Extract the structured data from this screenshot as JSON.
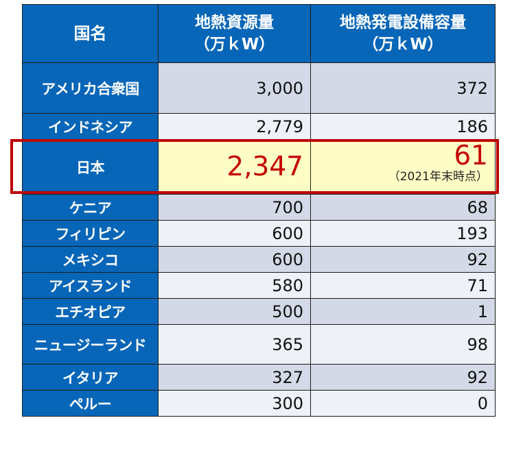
{
  "header": {
    "country": "国名",
    "resource_line1": "地熱資源量",
    "resource_line2": "（万ｋW）",
    "capacity_line1": "地熱発電設備容量",
    "capacity_line2": "（万ｋW）"
  },
  "rows": [
    {
      "country": "アメリカ合衆国",
      "resource": "3,000",
      "capacity": "372"
    },
    {
      "country": "インドネシア",
      "resource": "2,779",
      "capacity": "186"
    },
    {
      "country": "日本",
      "resource": "2,347",
      "capacity": "61",
      "note": "（2021年末時点）"
    },
    {
      "country": "ケニア",
      "resource": "700",
      "capacity": "68"
    },
    {
      "country": "フィリピン",
      "resource": "600",
      "capacity": "193"
    },
    {
      "country": "メキシコ",
      "resource": "600",
      "capacity": "92"
    },
    {
      "country": "アイスランド",
      "resource": "580",
      "capacity": "71"
    },
    {
      "country": "エチオピア",
      "resource": "500",
      "capacity": "1"
    },
    {
      "country": "ニュージーランド",
      "resource": "365",
      "capacity": "98"
    },
    {
      "country": "イタリア",
      "resource": "327",
      "capacity": "92"
    },
    {
      "country": "ペルー",
      "resource": "300",
      "capacity": "0"
    }
  ],
  "colors": {
    "header_blue": "#0866b8",
    "highlight_red": "#c00000",
    "japan_text_red": "#c40000",
    "japan_fill": "#fdfdc5"
  }
}
